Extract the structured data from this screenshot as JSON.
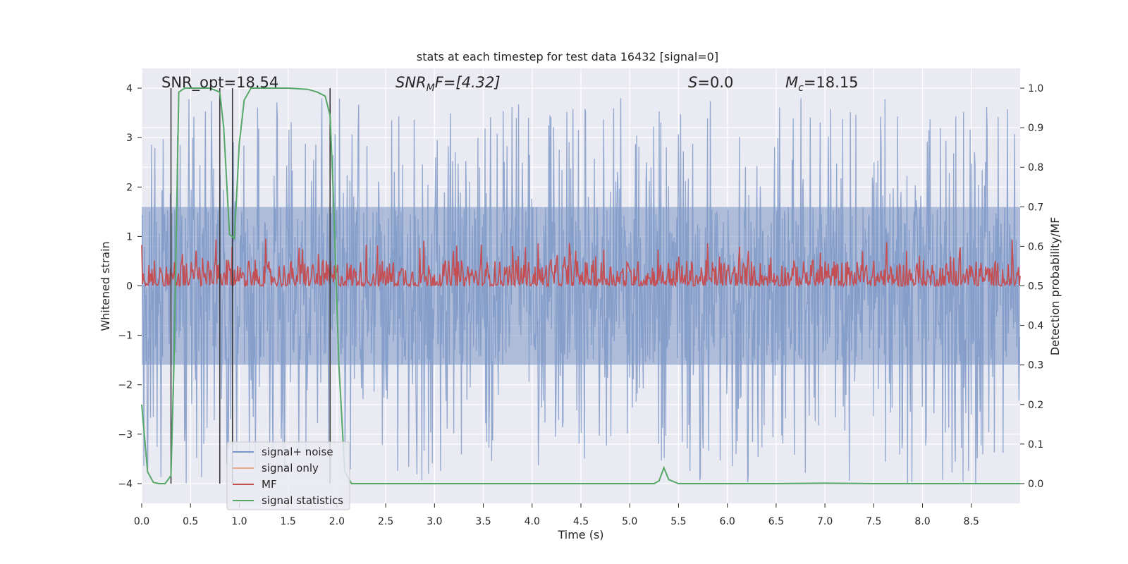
{
  "chart_data": {
    "type": "line",
    "title": "stats at each timestep for test data 16432 [signal=0]",
    "xlabel": "Time (s)",
    "ylabel": "Whitened strain",
    "y2label": "Detection probability/MF",
    "xlim": [
      0.0,
      9.0
    ],
    "ylim": [
      -4.4,
      4.4
    ],
    "y2lim": [
      -0.05,
      1.05
    ],
    "xticks": [
      "0.0",
      "0.5",
      "1.0",
      "1.5",
      "2.0",
      "2.5",
      "3.0",
      "3.5",
      "4.0",
      "4.5",
      "5.0",
      "5.5",
      "6.0",
      "6.5",
      "7.0",
      "7.5",
      "8.0",
      "8.5"
    ],
    "yticks": [
      "4",
      "3",
      "2",
      "1",
      "0",
      "−1",
      "−2",
      "−3",
      "−4"
    ],
    "y2ticks": [
      "1.0",
      "0.9",
      "0.8",
      "0.7",
      "0.6",
      "0.5",
      "0.4",
      "0.3",
      "0.2",
      "0.1",
      "0.0"
    ],
    "annotations": {
      "snr_opt": "SNR_opt=18.54",
      "snr_mf_sym": "SNR",
      "snr_mf_sub": "M",
      "snr_mf_rest": "F=[4.32]",
      "s_sym": "S",
      "s_rest": "=0.0",
      "mc_sym": "M",
      "mc_sub": "c",
      "mc_rest": "=18.15"
    },
    "legend": {
      "placement": "lower-left",
      "entries": [
        "signal+ noise",
        "signal only",
        "MF",
        "signal statistics"
      ]
    },
    "colors": {
      "noise": "#7b96c6",
      "signal_only": "#e8a98a",
      "mf": "#c44e52",
      "stat": "#55a868",
      "vline": "#3a3a3a",
      "plot_bg": "#eaeaf2",
      "grid": "#ffffff"
    },
    "series": [
      {
        "name": "signal statistics",
        "axis": "right",
        "x": [
          0.0,
          0.06,
          0.12,
          0.18,
          0.24,
          0.3,
          0.33,
          0.38,
          0.44,
          0.55,
          0.7,
          0.8,
          0.84,
          0.9,
          0.95,
          1.0,
          1.05,
          1.12,
          1.3,
          1.5,
          1.7,
          1.8,
          1.88,
          1.93,
          1.96,
          2.02,
          2.08,
          2.15,
          2.5,
          3.0,
          4.0,
          5.0,
          5.25,
          5.3,
          5.35,
          5.4,
          5.5,
          5.6,
          6.0,
          6.5,
          7.0,
          7.5,
          8.0,
          8.5,
          9.0
        ],
        "y": [
          0.2,
          0.03,
          0.003,
          0.0,
          0.0,
          0.02,
          0.3,
          0.99,
          1.0,
          1.0,
          1.0,
          0.99,
          0.9,
          0.63,
          0.62,
          0.86,
          0.97,
          1.0,
          1.0,
          1.0,
          0.997,
          0.99,
          0.98,
          0.93,
          0.75,
          0.3,
          0.03,
          0.0,
          0.0,
          0.0,
          0.0,
          0.0,
          0.0,
          0.007,
          0.04,
          0.01,
          0.0,
          0.0,
          0.0,
          0.0,
          0.001,
          0.0,
          0.0,
          0.0,
          0.0
        ]
      },
      {
        "name": "vertical markers",
        "axis": "x",
        "x": [
          0.3,
          0.8,
          0.93,
          1.93
        ]
      },
      {
        "name": "signal+ noise",
        "axis": "left",
        "envelope_y": [
          -1.6,
          1.6
        ],
        "peak_range_y": [
          -4.0,
          3.8
        ],
        "samples": 1600
      },
      {
        "name": "MF",
        "axis": "right",
        "baseline_y": 0.5,
        "peak_range_y": [
          0.5,
          0.62
        ],
        "samples": 1100
      }
    ]
  }
}
